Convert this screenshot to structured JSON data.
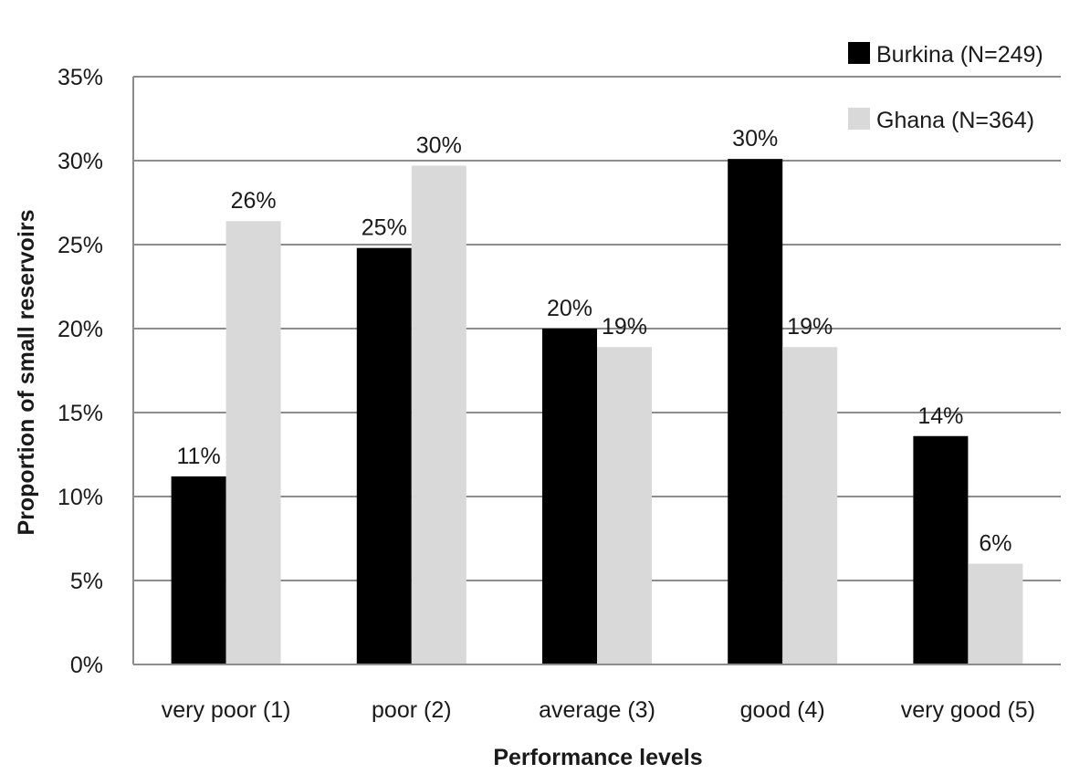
{
  "chart_data": {
    "type": "bar",
    "title": "",
    "xlabel": "Performance levels",
    "ylabel": "Proportion of  small reservoirs",
    "categories": [
      "very poor (1)",
      "poor (2)",
      "average (3)",
      "good (4)",
      "very good (5)"
    ],
    "series": [
      {
        "name": "Burkina (N=249)",
        "color": "#000000",
        "values": [
          11.2,
          24.8,
          20.0,
          30.1,
          13.6
        ],
        "labels": [
          "11%",
          "25%",
          "20%",
          "30%",
          "14%"
        ]
      },
      {
        "name": "Ghana (N=364)",
        "color": "#d9d9d9",
        "values": [
          26.4,
          29.7,
          18.9,
          18.9,
          6.0
        ],
        "labels": [
          "26%",
          "30%",
          "19%",
          "19%",
          "6%"
        ]
      }
    ],
    "ylim": [
      0,
      35
    ],
    "yticks": [
      0,
      5,
      10,
      15,
      20,
      25,
      30,
      35
    ],
    "ytick_labels": [
      "0%",
      "5%",
      "10%",
      "15%",
      "20%",
      "25%",
      "30%",
      "35%"
    ],
    "grid": true,
    "legend_position": "top-right"
  }
}
